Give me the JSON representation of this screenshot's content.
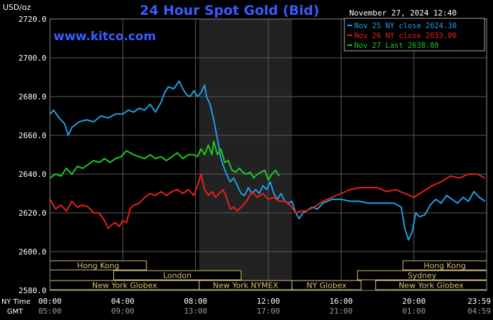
{
  "chart_data": {
    "type": "line",
    "title": "24 Hour Spot Gold (Bid)",
    "unit_label": "USD/oz",
    "watermark": "www.kitco.com",
    "date_label": "November 27, 2024 12:40",
    "ylim": [
      2580,
      2720
    ],
    "y_ticks": [
      2580,
      2600,
      2620,
      2640,
      2660,
      2680,
      2700,
      2720
    ],
    "y_tick_labels": [
      "2580.0",
      "2600.0",
      "2620.0",
      "2640.0",
      "2660.0",
      "2680.0",
      "2700.0",
      "2720.0"
    ],
    "x_range_hours": [
      0,
      24
    ],
    "x_ticks_hours": [
      0,
      4,
      8,
      12,
      16,
      20,
      24
    ],
    "x_tick_labels_ny": [
      "00:00",
      "04:00",
      "08:00",
      "12:00",
      "16:00",
      "20:00",
      "23:59"
    ],
    "x_tick_labels_gmt": [
      "05:00",
      "09:00",
      "13:00",
      "17:00",
      "21:00",
      "01:00",
      "04:59"
    ],
    "x_row_label_ny": "NY Time",
    "x_row_label_gmt": "GMT",
    "shaded_region_hours": [
      8.2,
      13.3
    ],
    "grid": true,
    "legend_position": "top-right",
    "sessions": [
      {
        "label": "Hong Kong",
        "start": 0,
        "end": 5.3,
        "row": 0
      },
      {
        "label": "Hong Kong",
        "start": 19.4,
        "end": 24,
        "row": 0
      },
      {
        "label": "London",
        "start": 3.5,
        "end": 10.5,
        "row": 1
      },
      {
        "label": "Sydney",
        "start": 16.9,
        "end": 24,
        "row": 1
      },
      {
        "label": "New York Globex",
        "start": 0,
        "end": 8.2,
        "row": 2
      },
      {
        "label": "New York NYMEX",
        "start": 8.2,
        "end": 13.3,
        "row": 2
      },
      {
        "label": "NY Globex",
        "start": 13.3,
        "end": 17.1,
        "row": 2
      },
      {
        "label": "New York Globex",
        "start": 17.9,
        "end": 24,
        "row": 2
      }
    ],
    "series": [
      {
        "name": "Nov 25 NY close 2624.30",
        "color": "#1e9fe8",
        "x": [
          0,
          0.2,
          0.5,
          0.8,
          1.0,
          1.2,
          1.6,
          2.0,
          2.4,
          2.8,
          3.2,
          3.6,
          4.0,
          4.3,
          4.6,
          4.9,
          5.2,
          5.5,
          5.8,
          6.1,
          6.3,
          6.5,
          6.8,
          7.1,
          7.3,
          7.5,
          7.7,
          7.9,
          8.1,
          8.3,
          8.5,
          8.6,
          8.8,
          9.0,
          9.2,
          9.4,
          9.5,
          9.7,
          9.9,
          10.1,
          10.3,
          10.5,
          10.7,
          10.9,
          11.1,
          11.3,
          11.5,
          11.7,
          11.9,
          12.1,
          12.3,
          12.5,
          12.7,
          12.9,
          13.1,
          13.3,
          13.5,
          13.7,
          13.9,
          14.1,
          14.4,
          14.7,
          15.0,
          15.5,
          16.0,
          16.5,
          17.0,
          17.5,
          18.0,
          18.5,
          18.9,
          19.1,
          19.3,
          19.5,
          19.7,
          19.9,
          20.1,
          20.3,
          20.6,
          20.9,
          21.2,
          21.5,
          21.8,
          22.1,
          22.4,
          22.7,
          23.0,
          23.3,
          23.6,
          23.9
        ],
        "y": [
          2671,
          2673,
          2669,
          2666,
          2660,
          2664,
          2667,
          2668,
          2667,
          2670,
          2669,
          2671,
          2671,
          2673,
          2672,
          2674,
          2673,
          2676,
          2672,
          2677,
          2682,
          2685,
          2684,
          2688,
          2684,
          2681,
          2680,
          2683,
          2680,
          2682,
          2686,
          2680,
          2676,
          2668,
          2658,
          2648,
          2645,
          2640,
          2636,
          2638,
          2634,
          2630,
          2629,
          2633,
          2630,
          2632,
          2630,
          2634,
          2632,
          2636,
          2630,
          2627,
          2630,
          2626,
          2625,
          2626,
          2620,
          2617,
          2620,
          2621,
          2623,
          2622,
          2625,
          2627,
          2627,
          2626,
          2626,
          2625,
          2625,
          2625,
          2625,
          2624,
          2623,
          2612,
          2606,
          2610,
          2620,
          2618,
          2619,
          2624,
          2627,
          2625,
          2629,
          2627,
          2625,
          2628,
          2626,
          2631,
          2628,
          2626
        ]
      },
      {
        "name": "Nov 26 NY close 2633.00",
        "color": "#e8201e",
        "x": [
          0,
          0.3,
          0.6,
          0.9,
          1.2,
          1.5,
          1.8,
          2.1,
          2.4,
          2.7,
          3.0,
          3.2,
          3.4,
          3.6,
          3.8,
          4.0,
          4.2,
          4.4,
          4.6,
          4.9,
          5.2,
          5.5,
          5.8,
          6.1,
          6.4,
          6.7,
          7.0,
          7.3,
          7.6,
          7.9,
          8.1,
          8.3,
          8.5,
          8.7,
          8.9,
          9.1,
          9.3,
          9.5,
          9.7,
          9.9,
          10.1,
          10.3,
          10.5,
          10.8,
          11.1,
          11.4,
          11.7,
          12.0,
          12.3,
          12.6,
          12.9,
          13.2,
          13.5,
          13.8,
          14.1,
          14.5,
          15.0,
          15.5,
          16.0,
          16.5,
          17.0,
          17.5,
          18.0,
          18.5,
          19.0,
          19.5,
          20.0,
          20.5,
          21.0,
          21.5,
          22.0,
          22.5,
          23.0,
          23.5,
          23.9
        ],
        "y": [
          2627,
          2622,
          2624,
          2621,
          2626,
          2623,
          2624,
          2623,
          2620,
          2620,
          2616,
          2612,
          2614,
          2615,
          2613,
          2616,
          2615,
          2622,
          2624,
          2625,
          2628,
          2630,
          2629,
          2631,
          2629,
          2631,
          2632,
          2630,
          2632,
          2629,
          2634,
          2640,
          2632,
          2629,
          2631,
          2628,
          2630,
          2632,
          2628,
          2622,
          2623,
          2621,
          2623,
          2626,
          2631,
          2628,
          2630,
          2627,
          2628,
          2626,
          2626,
          2624,
          2620,
          2621,
          2621,
          2623,
          2626,
          2628,
          2630,
          2632,
          2633,
          2633,
          2633,
          2631,
          2632,
          2630,
          2628,
          2631,
          2634,
          2636,
          2639,
          2638,
          2640,
          2640,
          2638
        ]
      },
      {
        "name": "Nov 27 Last 2638.80",
        "color": "#1ec81e",
        "x": [
          0,
          0.3,
          0.6,
          0.9,
          1.2,
          1.5,
          1.8,
          2.1,
          2.4,
          2.7,
          3.0,
          3.3,
          3.6,
          3.9,
          4.2,
          4.4,
          4.6,
          4.9,
          5.2,
          5.5,
          5.8,
          6.1,
          6.4,
          6.7,
          7.0,
          7.3,
          7.6,
          7.9,
          8.1,
          8.3,
          8.5,
          8.7,
          8.9,
          9.0,
          9.2,
          9.4,
          9.6,
          9.8,
          10.0,
          10.2,
          10.4,
          10.6,
          10.8,
          11.0,
          11.2,
          11.4,
          11.6,
          11.8,
          12.0,
          12.2,
          12.4,
          12.6
        ],
        "y": [
          2638,
          2640,
          2639,
          2643,
          2640,
          2644,
          2643,
          2645,
          2647,
          2646,
          2648,
          2646,
          2648,
          2649,
          2652,
          2651,
          2650,
          2649,
          2648,
          2650,
          2648,
          2649,
          2647,
          2649,
          2651,
          2648,
          2650,
          2650,
          2649,
          2653,
          2650,
          2655,
          2650,
          2657,
          2650,
          2653,
          2646,
          2647,
          2642,
          2641,
          2643,
          2641,
          2640,
          2641,
          2638,
          2640,
          2641,
          2642,
          2637,
          2640,
          2642,
          2639
        ]
      }
    ]
  }
}
